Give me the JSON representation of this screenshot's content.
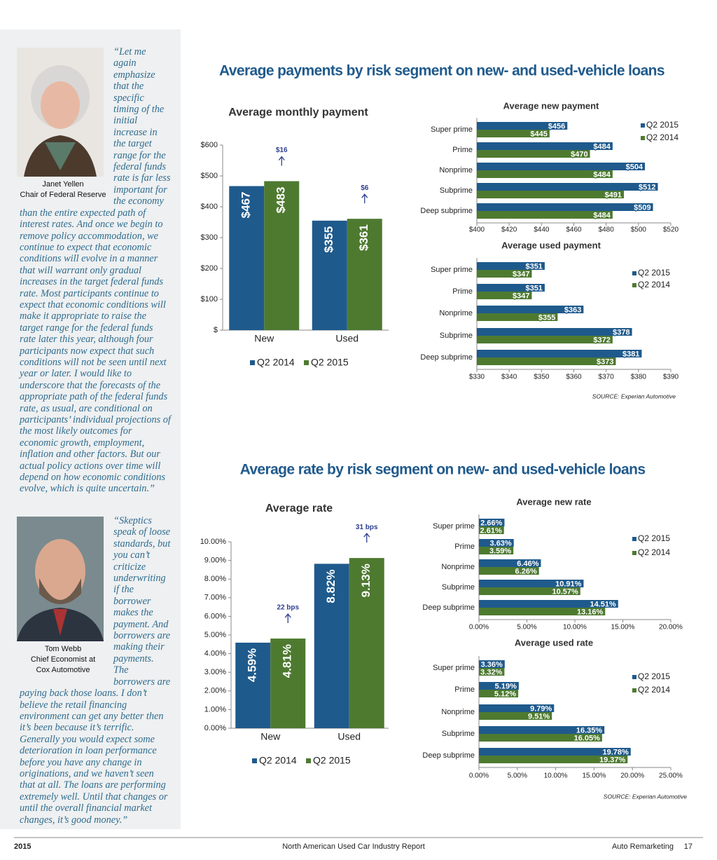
{
  "sidebar": {
    "quotes": [
      {
        "text": "“Let me again emphasize that the specific timing of the initial increase in the target range for the federal funds rate is far less important for the economy than the entire expected path of interest rates. And once we begin to remove policy accommodation, we continue to expect that economic conditions will evolve in a manner that will warrant only gradual increases in the target federal funds rate. Most participants continue to expect that economic conditions will make it appropriate to raise the target range for the federal funds rate later this year, although four participants now expect that such conditions will not be seen until next year or later. I would like to underscore that the forecasts of the appropriate path of the federal funds rate, as usual, are conditional on participants’ individual projections of the most likely outcomes for economic growth, employment, inflation and other factors. But our actual policy actions over time will depend on how economic conditions evolve, which is quite uncertain.”",
        "caption": [
          "Janet Yellen",
          "Chair of Federal Reserve"
        ]
      },
      {
        "text": "“Skeptics speak of loose standards, but you can’t criticize underwriting if the borrower makes the payment. And borrowers are making their payments. The borrowers are paying back those loans. I don’t believe the retail financing environment can get any better then it’s been because it’s terrific. Generally you would expect some deterioration in loan performance before you have any change in originations, and we haven’t seen that at all. The loans are performing extremely well. Until that changes or until the overall financial market changes, it’s good money.”",
        "caption": [
          "Tom Webb",
          "Chief Economist at",
          "Cox Automotive"
        ]
      }
    ]
  },
  "sections": [
    {
      "title": "Average payments by risk segment on new- and used-vehicle loans",
      "source": "SOURCE: Experian Automotive"
    },
    {
      "title": "Average rate by risk segment on new- and used-vehicle loans",
      "source": "SOURCE: Experian Automotive"
    }
  ],
  "footer": {
    "left": "2015",
    "center": "North American Used Car Industry Report",
    "right": "Auto Remarketing",
    "page": 17
  },
  "chart_data": [
    {
      "type": "bar",
      "title": "Average monthly payment",
      "categories": [
        "New",
        "Used"
      ],
      "series": [
        {
          "name": "Q2 2014",
          "color": "#1f5a8c",
          "values": [
            467,
            355
          ],
          "value_labels": [
            "$467",
            "$355"
          ]
        },
        {
          "name": "Q2 2015",
          "color": "#4e7a30",
          "values": [
            483,
            361
          ],
          "value_labels": [
            "$483",
            "$361"
          ]
        }
      ],
      "annotations": [
        "$16",
        "$6"
      ],
      "ylim": [
        0,
        600
      ],
      "yticks": [
        {
          "value": 0,
          "label": "$"
        },
        {
          "value": 100,
          "label": "$100"
        },
        {
          "value": 200,
          "label": "$200"
        },
        {
          "value": 300,
          "label": "$300"
        },
        {
          "value": 400,
          "label": "$400"
        },
        {
          "value": 500,
          "label": "$500"
        },
        {
          "value": 600,
          "label": "$600"
        }
      ],
      "legend": "bottom"
    },
    {
      "type": "barh",
      "title": "Average new payment",
      "categories": [
        "Super prime",
        "Prime",
        "Nonprime",
        "Subprime",
        "Deep subprime"
      ],
      "series": [
        {
          "name": "Q2 2015",
          "color": "#1f5a8c",
          "values": [
            456,
            484,
            504,
            512,
            509
          ],
          "value_labels": [
            "$456",
            "$484",
            "$504",
            "$512",
            "$509"
          ]
        },
        {
          "name": "Q2 2014",
          "color": "#4e7a30",
          "values": [
            445,
            470,
            484,
            491,
            484
          ],
          "value_labels": [
            "$445",
            "$470",
            "$484",
            "$491",
            "$484"
          ]
        }
      ],
      "xlim": [
        400,
        520
      ],
      "xticks": [
        {
          "value": 400,
          "label": "$400"
        },
        {
          "value": 420,
          "label": "$420"
        },
        {
          "value": 440,
          "label": "$440"
        },
        {
          "value": 460,
          "label": "$460"
        },
        {
          "value": 480,
          "label": "$480"
        },
        {
          "value": 500,
          "label": "$500"
        },
        {
          "value": 520,
          "label": "$520"
        }
      ],
      "legend": "right"
    },
    {
      "type": "barh",
      "title": "Average used payment",
      "categories": [
        "Super prime",
        "Prime",
        "Nonprime",
        "Subprime",
        "Deep subprime"
      ],
      "series": [
        {
          "name": "Q2 2015",
          "color": "#1f5a8c",
          "values": [
            351,
            351,
            363,
            378,
            381
          ],
          "value_labels": [
            "$351",
            "$351",
            "$363",
            "$378",
            "$381"
          ]
        },
        {
          "name": "Q2 2014",
          "color": "#4e7a30",
          "values": [
            347,
            347,
            355,
            372,
            373
          ],
          "value_labels": [
            "$347",
            "$347",
            "$355",
            "$372",
            "$373"
          ]
        }
      ],
      "xlim": [
        330,
        390
      ],
      "xticks": [
        {
          "value": 330,
          "label": "$330"
        },
        {
          "value": 340,
          "label": "$340"
        },
        {
          "value": 350,
          "label": "$350"
        },
        {
          "value": 360,
          "label": "$360"
        },
        {
          "value": 370,
          "label": "$370"
        },
        {
          "value": 380,
          "label": "$380"
        },
        {
          "value": 390,
          "label": "$390"
        }
      ],
      "legend": "right"
    },
    {
      "type": "bar",
      "title": "Average rate",
      "categories": [
        "New",
        "Used"
      ],
      "series": [
        {
          "name": "Q2 2014",
          "color": "#1f5a8c",
          "values": [
            4.59,
            8.82
          ],
          "value_labels": [
            "4.59%",
            "8.82%"
          ]
        },
        {
          "name": "Q2 2015",
          "color": "#4e7a30",
          "values": [
            4.81,
            9.13
          ],
          "value_labels": [
            "4.81%",
            "9.13%"
          ]
        }
      ],
      "annotations": [
        "22 bps",
        "31 bps"
      ],
      "ylim": [
        0,
        10
      ],
      "yticks": [
        {
          "value": 0,
          "label": "0.00%"
        },
        {
          "value": 1,
          "label": "1.00%"
        },
        {
          "value": 2,
          "label": "2.00%"
        },
        {
          "value": 3,
          "label": "3.00%"
        },
        {
          "value": 4,
          "label": "4.00%"
        },
        {
          "value": 5,
          "label": "5.00%"
        },
        {
          "value": 6,
          "label": "6.00%"
        },
        {
          "value": 7,
          "label": "7.00%"
        },
        {
          "value": 8,
          "label": "8.00%"
        },
        {
          "value": 9,
          "label": "9.00%"
        },
        {
          "value": 10,
          "label": "10.00%"
        }
      ],
      "legend": "bottom"
    },
    {
      "type": "barh",
      "title": "Average new rate",
      "categories": [
        "Super prime",
        "Prime",
        "Nonprime",
        "Subprime",
        "Deep subprime"
      ],
      "series": [
        {
          "name": "Q2 2015",
          "color": "#1f5a8c",
          "values": [
            2.66,
            3.63,
            6.46,
            10.91,
            14.51
          ],
          "value_labels": [
            "2.66%",
            "3.63%",
            "6.46%",
            "10.91%",
            "14.51%"
          ]
        },
        {
          "name": "Q2 2014",
          "color": "#4e7a30",
          "values": [
            2.61,
            3.59,
            6.26,
            10.57,
            13.16
          ],
          "value_labels": [
            "2.61%",
            "3.59%",
            "6.26%",
            "10.57%",
            "13.16%"
          ]
        }
      ],
      "xlim": [
        0,
        20
      ],
      "xticks": [
        {
          "value": 0,
          "label": "0.00%"
        },
        {
          "value": 5,
          "label": "5.00%"
        },
        {
          "value": 10,
          "label": "10.00%"
        },
        {
          "value": 15,
          "label": "15.00%"
        },
        {
          "value": 20,
          "label": "20.00%"
        }
      ],
      "legend": "right"
    },
    {
      "type": "barh",
      "title": "Average used rate",
      "categories": [
        "Super prime",
        "Prime",
        "Nonprime",
        "Subprime",
        "Deep subprime"
      ],
      "series": [
        {
          "name": "Q2 2015",
          "color": "#1f5a8c",
          "values": [
            3.36,
            5.19,
            9.79,
            16.35,
            19.78
          ],
          "value_labels": [
            "3.36%",
            "5.19%",
            "9.79%",
            "16.35%",
            "19.78%"
          ]
        },
        {
          "name": "Q2 2014",
          "color": "#4e7a30",
          "values": [
            3.32,
            5.12,
            9.51,
            16.05,
            19.37
          ],
          "value_labels": [
            "3.32%",
            "5.12%",
            "9.51%",
            "16.05%",
            "19.37%"
          ]
        }
      ],
      "xlim": [
        0,
        25
      ],
      "xticks": [
        {
          "value": 0,
          "label": "0.00%"
        },
        {
          "value": 5,
          "label": "5.00%"
        },
        {
          "value": 10,
          "label": "10.00%"
        },
        {
          "value": 15,
          "label": "15.00%"
        },
        {
          "value": 20,
          "label": "20.00%"
        },
        {
          "value": 25,
          "label": "25.00%"
        }
      ],
      "legend": "right"
    }
  ]
}
